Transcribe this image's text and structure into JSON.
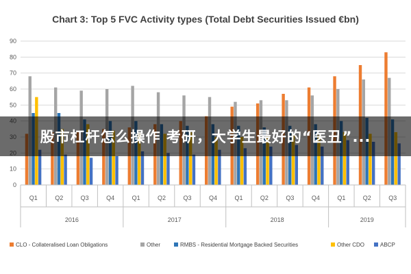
{
  "colors": {
    "CLO - Collateralised Loan Obligations": "#ed7d31",
    "Other": "#a5a5a5",
    "RMBS - Residential Mortgage Backed Securities": "#2e75b6",
    "Other CDO": "#ffc000",
    "ABCP": "#4472c4"
  },
  "overlay": {
    "text": "股市杠杆怎么操作 考研，大学生最好的“医丑”..."
  },
  "chart_data": {
    "type": "bar",
    "title": "Chart 3: Top 5 FVC Activity types (Total Debt Securities Issued €bn)",
    "xlabel": "",
    "ylabel": "",
    "ylim": [
      0,
      90
    ],
    "yticks": [
      "0",
      "10",
      "20",
      "30",
      "40",
      "50",
      "60",
      "70",
      "80",
      "90"
    ],
    "grid": true,
    "legend_position": "bottom",
    "categories": [
      "Q1",
      "Q2",
      "Q3",
      "Q4",
      "Q1",
      "Q2",
      "Q3",
      "Q4",
      "Q1",
      "Q2",
      "Q3",
      "Q4",
      "Q1",
      "Q2",
      "Q3"
    ],
    "groups": [
      {
        "label": "2016",
        "count": 4
      },
      {
        "label": "2017",
        "count": 4
      },
      {
        "label": "2018",
        "count": 4
      },
      {
        "label": "2019",
        "count": 3
      }
    ],
    "series": [
      {
        "name": "CLO - Collateralised Loan Obligations",
        "values": [
          32,
          33,
          34,
          35,
          36,
          38,
          40,
          43,
          49,
          51,
          57,
          61,
          68,
          75,
          83
        ]
      },
      {
        "name": "Other",
        "values": [
          68,
          61,
          59,
          60,
          62,
          58,
          56,
          55,
          52,
          53,
          53,
          56,
          60,
          66,
          67
        ]
      },
      {
        "name": "RMBS - Residential Mortgage Backed Securities",
        "values": [
          45,
          45,
          41,
          40,
          40,
          38,
          37,
          38,
          37,
          36,
          37,
          38,
          40,
          42,
          41
        ]
      },
      {
        "name": "Other CDO",
        "values": [
          55,
          35,
          38,
          34,
          33,
          32,
          33,
          30,
          30,
          31,
          32,
          31,
          33,
          32,
          33
        ]
      },
      {
        "name": "ABCP",
        "values": [
          22,
          19,
          17,
          18,
          21,
          20,
          19,
          22,
          23,
          24,
          25,
          24,
          28,
          27,
          26
        ]
      }
    ]
  }
}
